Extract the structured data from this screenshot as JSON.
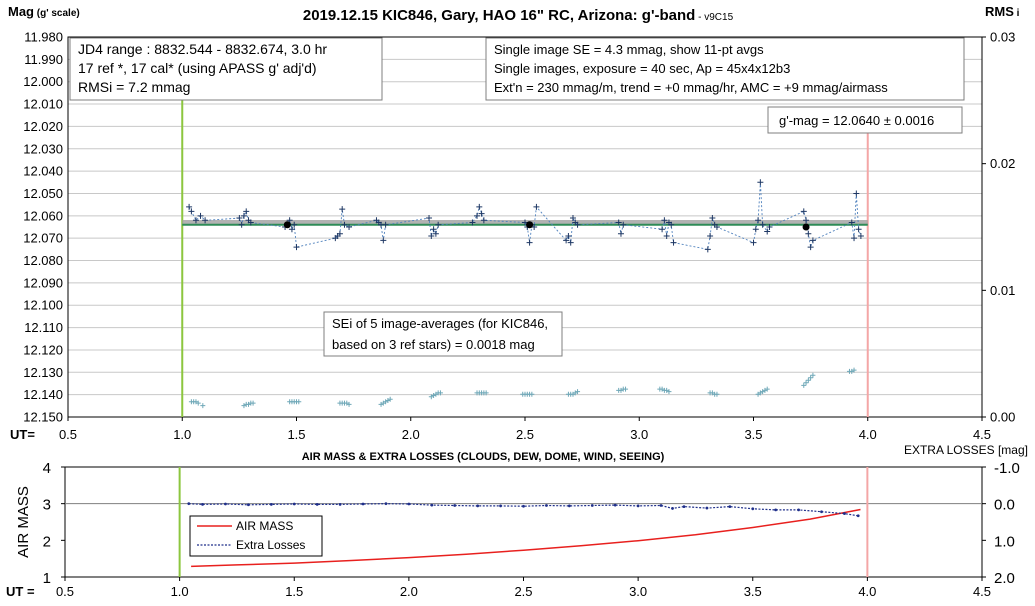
{
  "chart_data": [
    {
      "type": "line",
      "title": "2019.12.15 KIC846, Gary, HAO 16\" RC, Arizona: g'-band",
      "version": "- v9C15",
      "ylabel_main": "Mag",
      "ylabel_suffix": "(g' scale)",
      "y2label_main": "RMS",
      "y2label_suffix": "i",
      "xlabel": "UT=",
      "xlim": [
        0.5,
        4.5
      ],
      "xticks": [
        "0.5",
        "1.0",
        "1.5",
        "2.0",
        "2.5",
        "3.0",
        "3.5",
        "4.0",
        "4.5"
      ],
      "ylim": [
        11.98,
        12.15
      ],
      "y_reversed": true,
      "yticks": [
        "11.980",
        "11.990",
        "12.000",
        "12.010",
        "12.020",
        "12.030",
        "12.040",
        "12.050",
        "12.060",
        "12.070",
        "12.080",
        "12.090",
        "12.100",
        "12.110",
        "12.120",
        "12.130",
        "12.140",
        "12.150"
      ],
      "y2lim": [
        0.0,
        0.03
      ],
      "y2ticks": [
        "0.03",
        "0.02",
        "0.01",
        "0.00"
      ],
      "grid": "horizontal",
      "start_line_ut": 1.0,
      "end_line_ut": 4.0,
      "start_line_color": "#8cc63f",
      "end_line_color": "#f4a6a6",
      "mean_mag": 12.064,
      "annotations": {
        "box1": [
          "JD4 range : 8832.544 - 8832.674,  3.0  hr",
          "17 ref *, 17 cal* (using APASS g' adj'd)",
          "RMSi = 7.2 mmag"
        ],
        "box2": [
          "Single image SE = 4.3 mmag, show  11-pt avgs",
          "Single images, exposure = 40 sec, Ap = 45x4x12b3",
          "Ext'n = 230 mmag/m, trend =  +0 mmag/hr, AMC = +9 mmag/airmass"
        ],
        "box3": "g'-mag = 12.0640 ± 0.0016",
        "box4": [
          "SEi of 5 image-averages (for KIC846,",
          "based on 3 ref stars) = 0.0018 mag"
        ]
      },
      "series": [
        {
          "color": "#4f81bd",
          "marker": "+",
          "x": [
            1.03,
            1.04,
            1.06,
            1.08,
            1.1,
            1.25,
            1.26,
            1.27,
            1.28,
            1.29,
            1.3,
            1.45,
            1.47,
            1.48,
            1.49,
            1.5,
            1.67,
            1.68,
            1.69,
            1.7,
            1.71,
            1.73,
            1.85,
            1.86,
            1.87,
            1.88,
            1.89,
            2.08,
            2.09,
            2.1,
            2.11,
            2.12,
            2.27,
            2.29,
            2.3,
            2.31,
            2.32,
            2.5,
            2.51,
            2.52,
            2.53,
            2.54,
            2.55,
            2.68,
            2.69,
            2.7,
            2.71,
            2.72,
            2.73,
            2.91,
            2.92,
            2.93,
            3.1,
            3.11,
            3.12,
            3.13,
            3.14,
            3.15,
            3.3,
            3.31,
            3.32,
            3.33,
            3.34,
            3.5,
            3.51,
            3.52,
            3.53,
            3.54,
            3.56,
            3.57,
            3.72,
            3.73,
            3.74,
            3.75,
            3.76,
            3.93,
            3.94,
            3.95,
            3.96,
            3.97
          ],
          "values": [
            12.056,
            12.058,
            12.062,
            12.06,
            12.062,
            12.061,
            12.064,
            12.06,
            12.058,
            12.062,
            12.063,
            12.065,
            12.062,
            12.066,
            12.064,
            12.074,
            12.07,
            12.069,
            12.068,
            12.057,
            12.064,
            12.065,
            12.062,
            12.063,
            12.064,
            12.071,
            12.064,
            12.061,
            12.069,
            12.066,
            12.068,
            12.064,
            12.063,
            12.06,
            12.056,
            12.059,
            12.062,
            12.063,
            12.065,
            12.072,
            12.064,
            12.065,
            12.056,
            12.071,
            12.069,
            12.072,
            12.061,
            12.063,
            12.064,
            12.063,
            12.068,
            12.064,
            12.066,
            12.062,
            12.069,
            12.063,
            12.064,
            12.072,
            12.075,
            12.069,
            12.061,
            12.064,
            12.065,
            12.072,
            12.066,
            12.062,
            12.045,
            12.064,
            12.067,
            12.065,
            12.058,
            12.062,
            12.068,
            12.074,
            12.071,
            12.063,
            12.07,
            12.05,
            12.066,
            12.069
          ]
        },
        {
          "color": "#000000",
          "marker": "dot",
          "x": [
            1.46,
            2.52,
            3.73
          ],
          "values": [
            12.064,
            12.064,
            12.065
          ]
        },
        {
          "color": "#6fa8b8",
          "marker": "+",
          "axis": "y2",
          "x": [
            1.04,
            1.05,
            1.06,
            1.07,
            1.09,
            1.27,
            1.28,
            1.29,
            1.3,
            1.31,
            1.47,
            1.48,
            1.49,
            1.5,
            1.51,
            1.69,
            1.7,
            1.71,
            1.72,
            1.73,
            1.87,
            1.88,
            1.89,
            1.9,
            1.91,
            2.09,
            2.1,
            2.11,
            2.12,
            2.13,
            2.29,
            2.3,
            2.31,
            2.32,
            2.33,
            2.49,
            2.5,
            2.51,
            2.52,
            2.53,
            2.69,
            2.7,
            2.71,
            2.72,
            2.73,
            2.91,
            2.92,
            2.93,
            2.94,
            3.09,
            3.1,
            3.11,
            3.12,
            3.13,
            3.31,
            3.32,
            3.33,
            3.34,
            3.52,
            3.53,
            3.54,
            3.55,
            3.56,
            3.72,
            3.73,
            3.74,
            3.75,
            3.76,
            3.92,
            3.93,
            3.94
          ],
          "values": [
            0.0012,
            0.0012,
            0.0012,
            0.0011,
            0.0009,
            0.0009,
            0.001,
            0.001,
            0.0011,
            0.0011,
            0.0012,
            0.0012,
            0.0012,
            0.0012,
            0.0012,
            0.0011,
            0.0011,
            0.0011,
            0.0011,
            0.001,
            0.001,
            0.0011,
            0.0012,
            0.0013,
            0.0014,
            0.0016,
            0.0017,
            0.0018,
            0.0019,
            0.0019,
            0.0019,
            0.0019,
            0.0019,
            0.0019,
            0.0019,
            0.0018,
            0.0018,
            0.0018,
            0.0018,
            0.0018,
            0.0018,
            0.0018,
            0.0018,
            0.0019,
            0.002,
            0.0021,
            0.0021,
            0.0022,
            0.0022,
            0.0022,
            0.0022,
            0.0021,
            0.0021,
            0.002,
            0.0019,
            0.0019,
            0.0018,
            0.0018,
            0.0018,
            0.0019,
            0.002,
            0.0021,
            0.0022,
            0.0025,
            0.0027,
            0.0029,
            0.0031,
            0.0033,
            0.0036,
            0.0036,
            0.0037
          ]
        },
        {
          "color": "#a0a0a0",
          "role": "reference-band",
          "x": [
            1.0,
            4.0
          ],
          "values": [
            12.063,
            12.063
          ]
        },
        {
          "color": "#2e8b57",
          "role": "mean-line",
          "x": [
            1.0,
            4.0
          ],
          "values": [
            12.064,
            12.064
          ]
        }
      ]
    },
    {
      "type": "line",
      "title": "AIR MASS & EXTRA LOSSES (CLOUDS, DEW, DOME, WIND, SEEING)",
      "ylabel": "AIR MASS",
      "y2label": "EXTRA LOSSES [mag]",
      "xlabel": "UT =",
      "xlim": [
        0.5,
        4.5
      ],
      "xticks": [
        "0.5",
        "1.0",
        "1.5",
        "2.0",
        "2.5",
        "3.0",
        "3.5",
        "4.0",
        "4.5"
      ],
      "ylim": [
        1,
        4
      ],
      "yticks": [
        "1",
        "2",
        "3",
        "4"
      ],
      "y2lim": [
        -1.0,
        2.0
      ],
      "y2_reversed": true,
      "y2ticks": [
        "-1.0",
        "0.0",
        "1.0",
        "2.0"
      ],
      "legend_position": "bottom-left",
      "start_line_ut": 1.0,
      "end_line_ut": 4.0,
      "series": [
        {
          "name": "AIR MASS",
          "color": "#e8201e",
          "style": "solid",
          "x": [
            1.05,
            1.25,
            1.5,
            1.75,
            2.0,
            2.25,
            2.5,
            2.75,
            3.0,
            3.25,
            3.5,
            3.75,
            3.97
          ],
          "values": [
            1.29,
            1.33,
            1.38,
            1.45,
            1.53,
            1.62,
            1.73,
            1.85,
            1.99,
            2.15,
            2.35,
            2.58,
            2.84
          ]
        },
        {
          "name": "Extra Losses",
          "color": "#1f2f8a",
          "style": "dotted",
          "x": [
            1.04,
            1.1,
            1.2,
            1.3,
            1.4,
            1.5,
            1.6,
            1.7,
            1.8,
            1.9,
            2.0,
            2.1,
            2.2,
            2.3,
            2.4,
            2.5,
            2.6,
            2.7,
            2.8,
            2.9,
            3.0,
            3.1,
            3.15,
            3.2,
            3.3,
            3.4,
            3.5,
            3.6,
            3.7,
            3.8,
            3.9,
            3.96
          ],
          "values": [
            0.0,
            0.02,
            0.01,
            0.03,
            0.02,
            0.01,
            0.02,
            0.02,
            0.01,
            0.0,
            0.01,
            0.04,
            0.05,
            0.06,
            0.06,
            0.07,
            0.05,
            0.06,
            0.05,
            0.04,
            0.06,
            0.05,
            0.13,
            0.08,
            0.12,
            0.08,
            0.14,
            0.17,
            0.17,
            0.22,
            0.27,
            0.33
          ]
        }
      ]
    }
  ]
}
